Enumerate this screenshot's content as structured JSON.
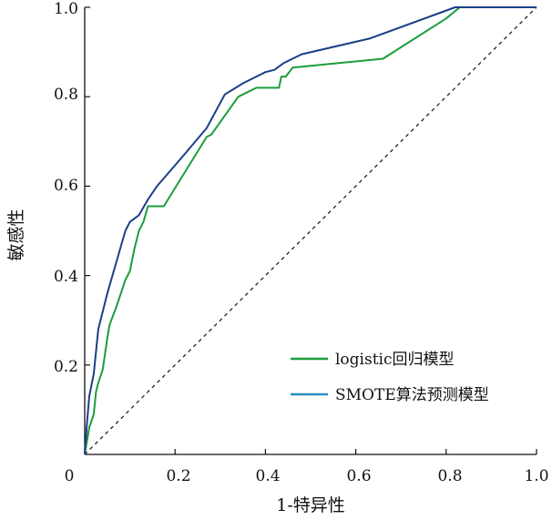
{
  "chart_data": {
    "type": "line",
    "title": "",
    "xlabel": "1-特异性",
    "ylabel": "敏感性",
    "xlim": [
      0,
      1
    ],
    "ylim": [
      0,
      1
    ],
    "x_ticks": [
      "0",
      "0.2",
      "0.4",
      "0.6",
      "0.8",
      "1.0"
    ],
    "y_ticks": [
      "0.2",
      "0.4",
      "0.6",
      "0.8",
      "1.0"
    ],
    "legend_position": "bottom-right",
    "colors": {
      "logistic": "#1a9e3c",
      "smote": "#1b3f86",
      "smote_legend": "#2a8fc0",
      "reference": "#222222"
    },
    "reference_line": {
      "style": "dashed",
      "points": [
        [
          0,
          0
        ],
        [
          1,
          1
        ]
      ]
    },
    "series": [
      {
        "name": "logistic回归模型",
        "points": [
          [
            0,
            0
          ],
          [
            0.01,
            0.06
          ],
          [
            0.02,
            0.09
          ],
          [
            0.025,
            0.14
          ],
          [
            0.03,
            0.16
          ],
          [
            0.04,
            0.19
          ],
          [
            0.05,
            0.26
          ],
          [
            0.055,
            0.29
          ],
          [
            0.07,
            0.33
          ],
          [
            0.09,
            0.39
          ],
          [
            0.1,
            0.41
          ],
          [
            0.11,
            0.46
          ],
          [
            0.12,
            0.5
          ],
          [
            0.13,
            0.52
          ],
          [
            0.14,
            0.555
          ],
          [
            0.175,
            0.555
          ],
          [
            0.27,
            0.71
          ],
          [
            0.28,
            0.715
          ],
          [
            0.34,
            0.8
          ],
          [
            0.38,
            0.82
          ],
          [
            0.43,
            0.82
          ],
          [
            0.435,
            0.845
          ],
          [
            0.445,
            0.845
          ],
          [
            0.46,
            0.865
          ],
          [
            0.66,
            0.885
          ],
          [
            0.8,
            0.975
          ],
          [
            0.83,
            1.0
          ],
          [
            1.0,
            1.0
          ]
        ]
      },
      {
        "name": "SMOTE算法预测模型",
        "points": [
          [
            0,
            0
          ],
          [
            0.005,
            0.07
          ],
          [
            0.01,
            0.13
          ],
          [
            0.02,
            0.18
          ],
          [
            0.03,
            0.28
          ],
          [
            0.05,
            0.36
          ],
          [
            0.07,
            0.43
          ],
          [
            0.09,
            0.5
          ],
          [
            0.1,
            0.52
          ],
          [
            0.12,
            0.535
          ],
          [
            0.14,
            0.57
          ],
          [
            0.16,
            0.6
          ],
          [
            0.22,
            0.67
          ],
          [
            0.27,
            0.73
          ],
          [
            0.31,
            0.805
          ],
          [
            0.35,
            0.83
          ],
          [
            0.4,
            0.855
          ],
          [
            0.42,
            0.86
          ],
          [
            0.44,
            0.875
          ],
          [
            0.48,
            0.895
          ],
          [
            0.63,
            0.93
          ],
          [
            0.82,
            1.0
          ],
          [
            1.0,
            1.0
          ]
        ]
      }
    ]
  }
}
